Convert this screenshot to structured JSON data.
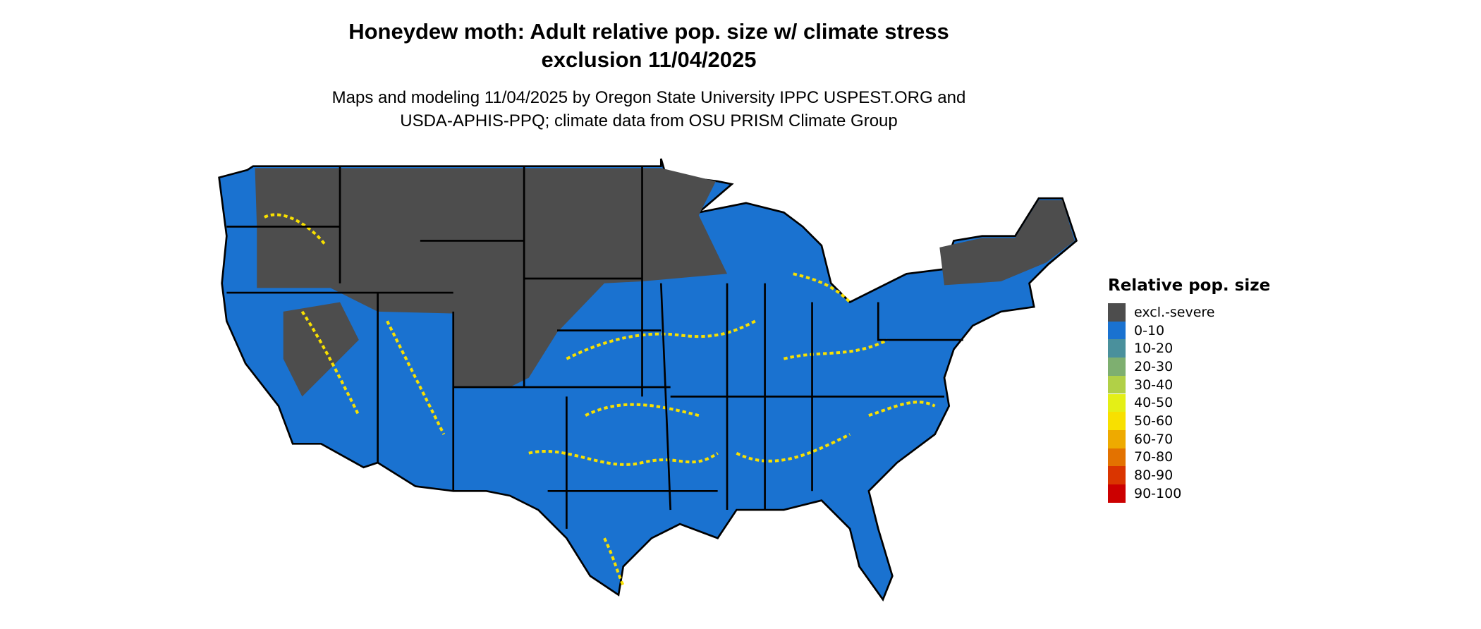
{
  "title_line1": "Honeydew moth: Adult relative pop. size w/ climate stress",
  "title_line2": "exclusion 11/04/2025",
  "subtitle_line1": "Maps and modeling 11/04/2025 by Oregon State University IPPC USPEST.ORG and",
  "subtitle_line2": "USDA-APHIS-PPQ; climate data from OSU PRISM Climate Group",
  "legend": {
    "title": "Relative pop. size",
    "items": [
      {
        "label": "excl.-severe",
        "color": "#4d4d4d"
      },
      {
        "label": "0-10",
        "color": "#1a72d0"
      },
      {
        "label": "10-20",
        "color": "#4a909c"
      },
      {
        "label": "20-30",
        "color": "#7eaf70"
      },
      {
        "label": "30-40",
        "color": "#b1d047"
      },
      {
        "label": "40-50",
        "color": "#e4ef16"
      },
      {
        "label": "50-60",
        "color": "#f8e000"
      },
      {
        "label": "60-70",
        "color": "#eeaa00"
      },
      {
        "label": "70-80",
        "color": "#e37200"
      },
      {
        "label": "80-90",
        "color": "#da3500"
      },
      {
        "label": "90-100",
        "color": "#cc0000"
      }
    ]
  }
}
